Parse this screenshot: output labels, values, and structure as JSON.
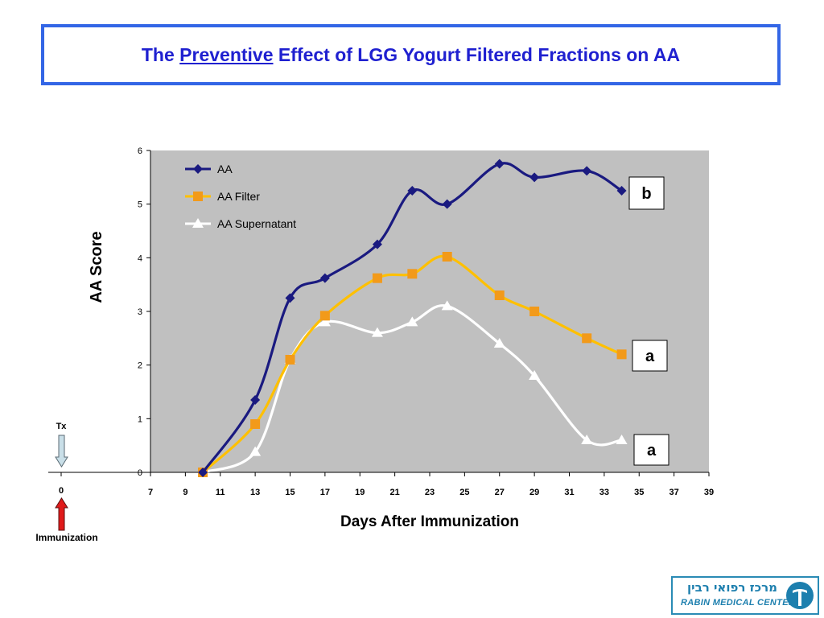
{
  "title": {
    "prefix": "The ",
    "emphasis": "Preventive",
    "suffix": " Effect of LGG Yogurt Filtered Fractions on AA"
  },
  "annotations": {
    "tx_label": "Tx",
    "zero_label": "0",
    "immunization_label": "Immunization",
    "tx_arrow_color": "#c9dfe8",
    "immunization_arrow_color": "#e01a1a"
  },
  "logo": {
    "hebrew": "מרכז רפואי רבין",
    "english": "RABIN MEDICAL CENTER",
    "icon": "rabin-logo-icon",
    "color": "#1d7fae"
  },
  "chart_data": {
    "type": "line",
    "xlabel": "Days After Immunization",
    "ylabel": "AA Score",
    "xlim": [
      7,
      39
    ],
    "ylim": [
      0,
      6
    ],
    "x_ticks": [
      7,
      9,
      11,
      13,
      15,
      17,
      19,
      21,
      23,
      25,
      27,
      29,
      31,
      33,
      35,
      37,
      39
    ],
    "y_ticks": [
      0,
      1,
      2,
      3,
      4,
      5,
      6
    ],
    "background": "#c0c0c0",
    "grid": false,
    "legend": "top-left",
    "series": [
      {
        "name": "AA",
        "color": "#1a1a80",
        "marker": "diamond",
        "x": [
          10,
          13,
          15,
          17,
          20,
          22,
          24,
          27,
          29,
          32,
          34
        ],
        "y": [
          0,
          1.35,
          3.25,
          3.62,
          4.25,
          5.25,
          5.0,
          5.75,
          5.5,
          5.62,
          5.25
        ]
      },
      {
        "name": "AA Filter",
        "color": "#ffc000",
        "marker_color": "#f29a1a",
        "marker": "square",
        "x": [
          10,
          13,
          15,
          17,
          20,
          22,
          24,
          27,
          29,
          32,
          34
        ],
        "y": [
          0,
          0.9,
          2.1,
          2.92,
          3.62,
          3.7,
          4.02,
          3.3,
          3.0,
          2.5,
          2.2
        ]
      },
      {
        "name": "AA Supernatant",
        "color": "#ffffff",
        "marker": "triangle",
        "x": [
          10,
          13,
          15,
          17,
          20,
          22,
          24,
          27,
          29,
          32,
          34
        ],
        "y": [
          0,
          0.38,
          2.1,
          2.8,
          2.6,
          2.8,
          3.1,
          2.4,
          1.8,
          0.6,
          0.6
        ]
      }
    ],
    "significance_labels": [
      {
        "series": "AA",
        "text": "b"
      },
      {
        "series": "AA Filter",
        "text": "a"
      },
      {
        "series": "AA Supernatant",
        "text": "a"
      }
    ]
  }
}
